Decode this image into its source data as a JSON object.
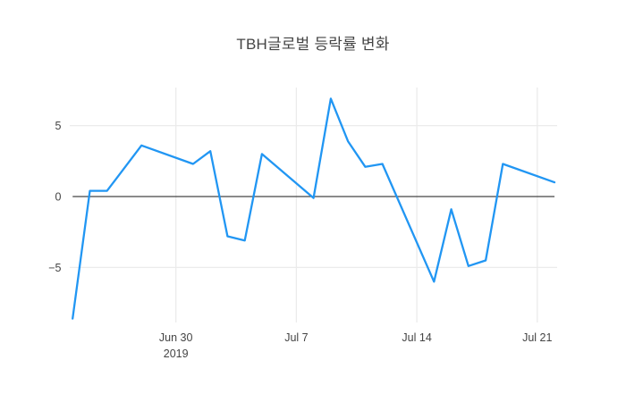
{
  "chart": {
    "title": "TBH글로벌 등락률 변화"
  },
  "chart_data": {
    "type": "line",
    "title": "TBH글로벌 등락률 변화",
    "xlabel": "",
    "ylabel": "",
    "grid": true,
    "zeroline": true,
    "legend": "none",
    "ylim": [
      -8.8,
      7.7
    ],
    "x_range": [
      "2019-06-24",
      "2019-07-22"
    ],
    "series": [
      {
        "name": "TBH글로벌 등락률",
        "points": [
          {
            "date": "2019-06-24",
            "value": -8.6
          },
          {
            "date": "2019-06-25",
            "value": 0.4
          },
          {
            "date": "2019-06-26",
            "value": 0.4
          },
          {
            "date": "2019-06-28",
            "value": 3.6
          },
          {
            "date": "2019-07-01",
            "value": 2.3
          },
          {
            "date": "2019-07-02",
            "value": 3.2
          },
          {
            "date": "2019-07-03",
            "value": -2.8
          },
          {
            "date": "2019-07-04",
            "value": -3.1
          },
          {
            "date": "2019-07-05",
            "value": 3.0
          },
          {
            "date": "2019-07-08",
            "value": -0.1
          },
          {
            "date": "2019-07-09",
            "value": 6.9
          },
          {
            "date": "2019-07-10",
            "value": 3.9
          },
          {
            "date": "2019-07-11",
            "value": 2.1
          },
          {
            "date": "2019-07-12",
            "value": 2.3
          },
          {
            "date": "2019-07-15",
            "value": -6.0
          },
          {
            "date": "2019-07-16",
            "value": -0.9
          },
          {
            "date": "2019-07-17",
            "value": -4.9
          },
          {
            "date": "2019-07-18",
            "value": -4.5
          },
          {
            "date": "2019-07-19",
            "value": 2.3
          },
          {
            "date": "2019-07-22",
            "value": 1.0
          }
        ]
      }
    ],
    "x_ticks": [
      {
        "date": "2019-06-30",
        "label": "Jun 30",
        "sublabel": "2019"
      },
      {
        "date": "2019-07-07",
        "label": "Jul 7",
        "sublabel": ""
      },
      {
        "date": "2019-07-14",
        "label": "Jul 14",
        "sublabel": ""
      },
      {
        "date": "2019-07-21",
        "label": "Jul 21",
        "sublabel": ""
      }
    ],
    "y_ticks": [
      {
        "value": 5,
        "label": "5"
      },
      {
        "value": 0,
        "label": "0"
      },
      {
        "value": -5,
        "label": "−5"
      }
    ],
    "colors": {
      "line": "#2196f3",
      "grid": "#ebebeb",
      "zeroline": "#444444",
      "tick_text": "#444444",
      "title_text": "#444444",
      "background": "#ffffff"
    }
  }
}
